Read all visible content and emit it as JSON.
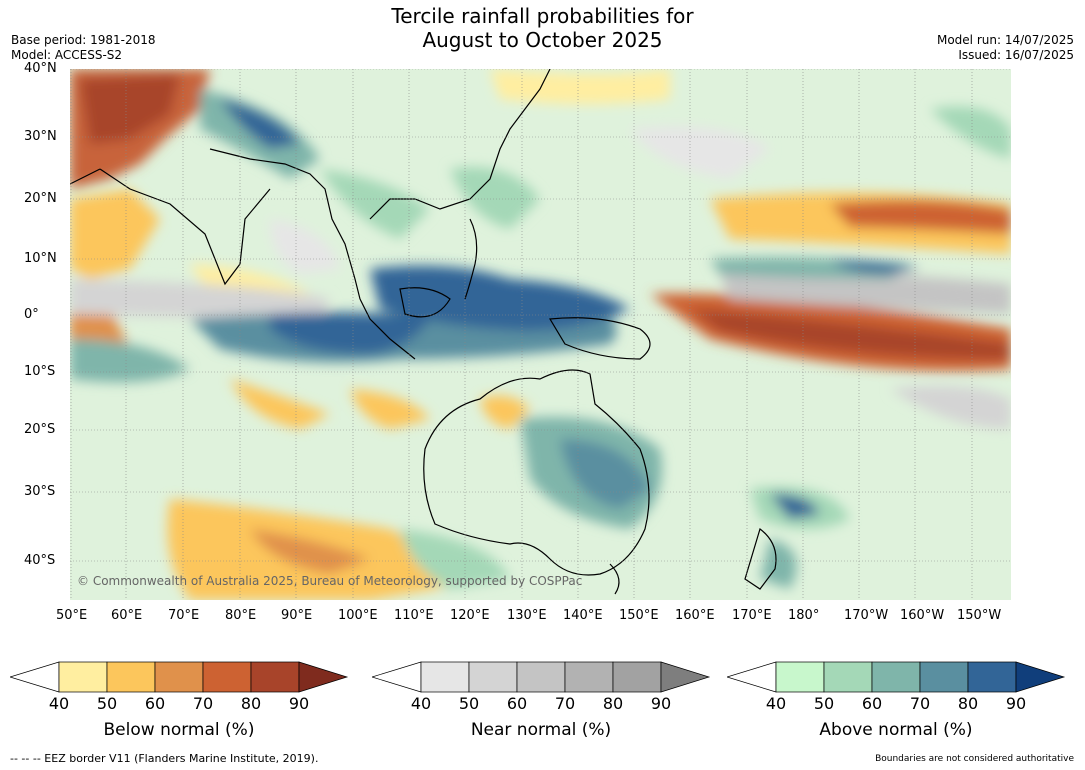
{
  "header": {
    "title_line1": "Tercile rainfall probabilities for",
    "title_line2": "August to October 2025",
    "base_period": "Base period: 1981-2018",
    "model": "Model: ACCESS-S2",
    "model_run": "Model run: 14/07/2025",
    "issued": "Issued: 16/07/2025"
  },
  "map": {
    "lat_labels": [
      "40°N",
      "30°N",
      "20°N",
      "10°N",
      "0°",
      "10°S",
      "20°S",
      "30°S",
      "40°S"
    ],
    "lon_labels": [
      "50°E",
      "60°E",
      "70°E",
      "80°E",
      "90°E",
      "100°E",
      "110°E",
      "120°E",
      "130°E",
      "140°E",
      "150°E",
      "160°E",
      "170°E",
      "180°",
      "170°W",
      "160°W",
      "150°W"
    ],
    "copyright": "© Commonwealth of Australia 2025, Bureau of Meteorology, supported by COSPPac"
  },
  "legend": {
    "ticks": [
      "40",
      "50",
      "60",
      "70",
      "80",
      "90"
    ],
    "below": {
      "title": "Below normal (%)",
      "colors": [
        "#ffeea0",
        "#fcc65c",
        "#e0914b",
        "#cd6232",
        "#a8442a",
        "#7f2b1e"
      ]
    },
    "near": {
      "title": "Near normal (%)",
      "colors": [
        "#e6e6e6",
        "#d4d4d4",
        "#c4c4c4",
        "#b2b2b2",
        "#a2a2a2",
        "#7e7e7e"
      ]
    },
    "above": {
      "title": "Above normal (%)",
      "colors": [
        "#c8f7cc",
        "#a4d8b7",
        "#7fb5aa",
        "#5a8fa0",
        "#326597",
        "#103e7b"
      ]
    }
  },
  "footer": {
    "eez": "--  --  -- EEZ border V11 (Flanders Marine Institute, 2019).",
    "boundaries": "Boundaries are not considered authoritative"
  }
}
